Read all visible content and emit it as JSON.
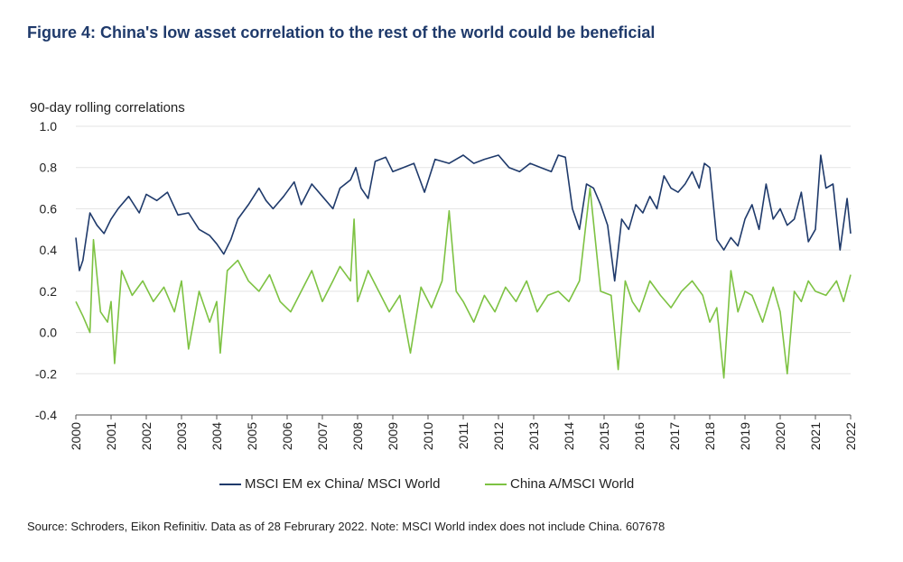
{
  "header": {
    "title": "Figure 4: China's low asset correlation to the rest of the world could be beneficial"
  },
  "footer": {
    "source": "Source: Schroders, Eikon Refinitiv. Data as of 28 Februrary 2022. Note: MSCI World index does not include China. 607678"
  },
  "colors": {
    "em": "#1f3a6b",
    "china": "#7dc242",
    "grid": "#e3e3e3",
    "axis": "#555555"
  },
  "chart_data": {
    "type": "line",
    "title": "Figure 4: China's low asset correlation to the rest of the world could be beneficial",
    "ylabel": "90-day rolling correlations",
    "xlabel": "",
    "ylim": [
      -0.4,
      1.0
    ],
    "xlim": [
      2000,
      2022
    ],
    "y_ticks": [
      "-0.4",
      "-0.2",
      "0.0",
      "0.2",
      "0.4",
      "0.6",
      "0.8",
      "1.0"
    ],
    "x_ticks": [
      "2000",
      "2001",
      "2002",
      "2003",
      "2004",
      "2005",
      "2006",
      "2007",
      "2008",
      "2009",
      "2010",
      "2011",
      "2012",
      "2013",
      "2014",
      "2015",
      "2016",
      "2017",
      "2018",
      "2019",
      "2020",
      "2021",
      "2022"
    ],
    "grid": "horizontal",
    "legend_position": "bottom",
    "series": [
      {
        "name": "MSCI EM ex China/ MSCI World",
        "x": [
          2000.0,
          2000.1,
          2000.2,
          2000.4,
          2000.6,
          2000.8,
          2001.0,
          2001.2,
          2001.5,
          2001.8,
          2002.0,
          2002.3,
          2002.6,
          2002.9,
          2003.2,
          2003.5,
          2003.8,
          2004.0,
          2004.2,
          2004.4,
          2004.6,
          2004.9,
          2005.2,
          2005.4,
          2005.6,
          2005.9,
          2006.2,
          2006.4,
          2006.7,
          2007.0,
          2007.3,
          2007.5,
          2007.8,
          2007.95,
          2008.1,
          2008.3,
          2008.5,
          2008.8,
          2009.0,
          2009.3,
          2009.6,
          2009.9,
          2010.2,
          2010.6,
          2011.0,
          2011.3,
          2011.6,
          2012.0,
          2012.3,
          2012.6,
          2012.9,
          2013.2,
          2013.5,
          2013.7,
          2013.9,
          2014.1,
          2014.3,
          2014.5,
          2014.7,
          2014.9,
          2015.1,
          2015.3,
          2015.5,
          2015.7,
          2015.9,
          2016.1,
          2016.3,
          2016.5,
          2016.7,
          2016.9,
          2017.1,
          2017.3,
          2017.5,
          2017.7,
          2017.85,
          2018.0,
          2018.2,
          2018.4,
          2018.6,
          2018.8,
          2019.0,
          2019.2,
          2019.4,
          2019.6,
          2019.8,
          2020.0,
          2020.2,
          2020.4,
          2020.6,
          2020.8,
          2021.0,
          2021.15,
          2021.3,
          2021.5,
          2021.7,
          2021.9,
          2022.0
        ],
        "values": [
          0.46,
          0.3,
          0.35,
          0.58,
          0.52,
          0.48,
          0.55,
          0.6,
          0.66,
          0.58,
          0.67,
          0.64,
          0.68,
          0.57,
          0.58,
          0.5,
          0.47,
          0.43,
          0.38,
          0.45,
          0.55,
          0.62,
          0.7,
          0.64,
          0.6,
          0.66,
          0.73,
          0.62,
          0.72,
          0.66,
          0.6,
          0.7,
          0.74,
          0.8,
          0.7,
          0.65,
          0.83,
          0.85,
          0.78,
          0.8,
          0.82,
          0.68,
          0.84,
          0.82,
          0.86,
          0.82,
          0.84,
          0.86,
          0.8,
          0.78,
          0.82,
          0.8,
          0.78,
          0.86,
          0.85,
          0.6,
          0.5,
          0.72,
          0.7,
          0.62,
          0.52,
          0.25,
          0.55,
          0.5,
          0.62,
          0.58,
          0.66,
          0.6,
          0.76,
          0.7,
          0.68,
          0.72,
          0.78,
          0.7,
          0.82,
          0.8,
          0.45,
          0.4,
          0.46,
          0.42,
          0.55,
          0.62,
          0.5,
          0.72,
          0.55,
          0.6,
          0.52,
          0.55,
          0.68,
          0.44,
          0.5,
          0.86,
          0.7,
          0.72,
          0.4,
          0.65,
          0.48
        ]
      },
      {
        "name": "China A/MSCI World",
        "x": [
          2000.0,
          2000.2,
          2000.4,
          2000.5,
          2000.7,
          2000.9,
          2001.0,
          2001.1,
          2001.3,
          2001.6,
          2001.9,
          2002.2,
          2002.5,
          2002.8,
          2003.0,
          2003.2,
          2003.5,
          2003.8,
          2004.0,
          2004.1,
          2004.3,
          2004.6,
          2004.9,
          2005.2,
          2005.5,
          2005.8,
          2006.1,
          2006.4,
          2006.7,
          2007.0,
          2007.3,
          2007.5,
          2007.8,
          2007.9,
          2008.0,
          2008.3,
          2008.6,
          2008.9,
          2009.2,
          2009.5,
          2009.8,
          2010.1,
          2010.4,
          2010.6,
          2010.8,
          2011.0,
          2011.3,
          2011.6,
          2011.9,
          2012.2,
          2012.5,
          2012.8,
          2013.1,
          2013.4,
          2013.7,
          2014.0,
          2014.3,
          2014.6,
          2014.9,
          2015.2,
          2015.4,
          2015.6,
          2015.8,
          2016.0,
          2016.3,
          2016.6,
          2016.9,
          2017.2,
          2017.5,
          2017.8,
          2018.0,
          2018.2,
          2018.4,
          2018.6,
          2018.8,
          2019.0,
          2019.2,
          2019.5,
          2019.8,
          2020.0,
          2020.2,
          2020.4,
          2020.6,
          2020.8,
          2021.0,
          2021.3,
          2021.6,
          2021.8,
          2022.0
        ],
        "values": [
          0.15,
          0.08,
          0.0,
          0.45,
          0.1,
          0.05,
          0.15,
          -0.15,
          0.3,
          0.18,
          0.25,
          0.15,
          0.22,
          0.1,
          0.25,
          -0.08,
          0.2,
          0.05,
          0.15,
          -0.1,
          0.3,
          0.35,
          0.25,
          0.2,
          0.28,
          0.15,
          0.1,
          0.2,
          0.3,
          0.15,
          0.25,
          0.32,
          0.25,
          0.55,
          0.15,
          0.3,
          0.2,
          0.1,
          0.18,
          -0.1,
          0.22,
          0.12,
          0.25,
          0.59,
          0.2,
          0.15,
          0.05,
          0.18,
          0.1,
          0.22,
          0.15,
          0.25,
          0.1,
          0.18,
          0.2,
          0.15,
          0.25,
          0.7,
          0.2,
          0.18,
          -0.18,
          0.25,
          0.15,
          0.1,
          0.25,
          0.18,
          0.12,
          0.2,
          0.25,
          0.18,
          0.05,
          0.12,
          -0.22,
          0.3,
          0.1,
          0.2,
          0.18,
          0.05,
          0.22,
          0.1,
          -0.2,
          0.2,
          0.15,
          0.25,
          0.2,
          0.18,
          0.25,
          0.15,
          0.28
        ]
      }
    ]
  }
}
